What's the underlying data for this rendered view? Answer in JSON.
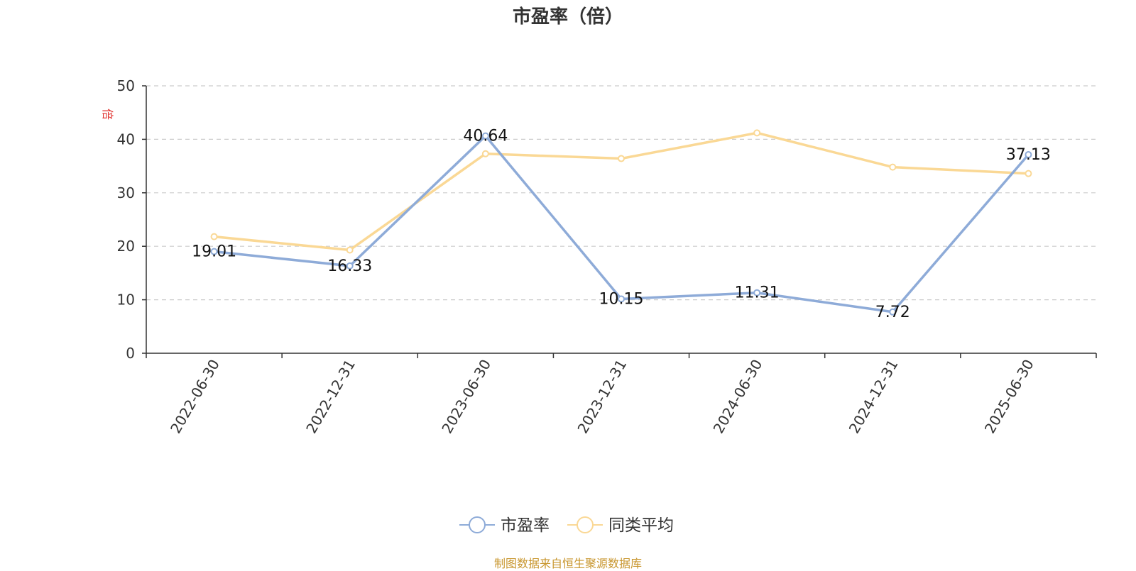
{
  "chart_data": {
    "type": "line",
    "title": "市盈率（倍）",
    "ylabel": "倍",
    "ylim": [
      0,
      50
    ],
    "yticks": [
      0,
      10,
      20,
      30,
      40,
      50
    ],
    "grid": true,
    "legend_position": "bottom-center",
    "categories": [
      "2022-06-30",
      "2022-12-31",
      "2023-06-30",
      "2023-12-31",
      "2024-06-30",
      "2024-12-31",
      "2025-06-30"
    ],
    "series": [
      {
        "name": "市盈率",
        "color": "#8eabd8",
        "values": [
          19.01,
          16.33,
          40.64,
          10.15,
          11.31,
          7.72,
          37.13
        ],
        "labels": [
          "19.01",
          "16.33",
          "40.64",
          "10.15",
          "11.31",
          "7.72",
          "37.13"
        ],
        "show_labels": true
      },
      {
        "name": "同类平均",
        "color": "#fad895",
        "values": [
          21.8,
          19.3,
          37.3,
          36.4,
          41.2,
          34.8,
          33.6
        ],
        "show_labels": false
      }
    ]
  },
  "footer": {
    "source_text": "制图数据来自恒生聚源数据库"
  },
  "colors": {
    "axis": "#333333",
    "grid": "#cccccc",
    "ylabel": "#e0302c",
    "footer": "#c8962e"
  }
}
